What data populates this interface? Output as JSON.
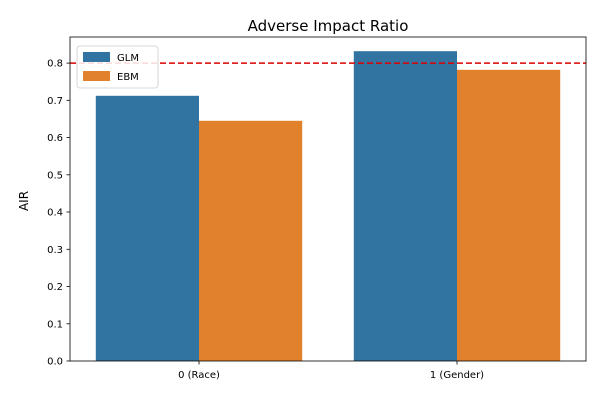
{
  "chart_data": {
    "type": "bar",
    "title": "Adverse Impact Ratio",
    "xlabel": "",
    "ylabel": "AIR",
    "categories": [
      "0 (Race)",
      "1 (Gender)"
    ],
    "series": [
      {
        "name": "GLM",
        "values": [
          0.712,
          0.832
        ],
        "color": "#3274a1"
      },
      {
        "name": "EBM",
        "values": [
          0.645,
          0.782
        ],
        "color": "#e1812c"
      }
    ],
    "ylim": [
      0,
      0.87
    ],
    "yticks": [
      "0.0",
      "0.1",
      "0.2",
      "0.3",
      "0.4",
      "0.5",
      "0.6",
      "0.7",
      "0.8"
    ],
    "reference_line": {
      "value": 0.8,
      "color": "#dd0000",
      "style": "dashed"
    },
    "legend": {
      "placement": "top-left"
    },
    "grid": false
  }
}
